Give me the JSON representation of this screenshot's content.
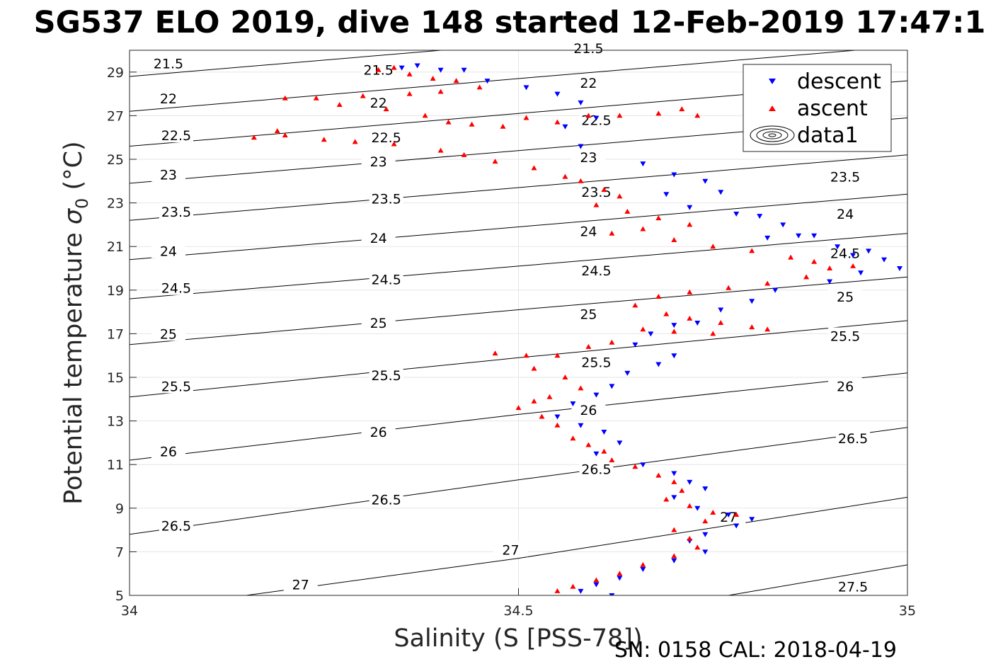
{
  "chart_data": {
    "type": "scatter",
    "title": "SG537 ELO 2019, dive 148 started 12-Feb-2019 17:47:1",
    "xlabel": "Salinity (S [PSS-78])",
    "ylabel_main": "Potential temperature ",
    "ylabel_symbol": "σ",
    "ylabel_sub": "0",
    "ylabel_unit": " (°C)",
    "footer": "SN: 0158  CAL: 2018-04-19",
    "xlim": [
      34,
      35
    ],
    "ylim": [
      5,
      30
    ],
    "x_ticks": [
      34,
      34.5,
      35
    ],
    "x_tick_labels": [
      "34",
      "34.5",
      "35"
    ],
    "y_ticks": [
      5,
      7,
      9,
      11,
      13,
      15,
      17,
      19,
      21,
      23,
      25,
      27,
      29
    ],
    "y_tick_labels": [
      "5",
      "7",
      "9",
      "11",
      "13",
      "15",
      "17",
      "19",
      "21",
      "23",
      "25",
      "27",
      "29"
    ],
    "grid": true,
    "legend_position": "top-right",
    "legend": [
      "descent",
      "ascent",
      "data1"
    ],
    "contours": {
      "levels": [
        21.5,
        22,
        22.5,
        23,
        23.5,
        24,
        24.5,
        25,
        25.5,
        26,
        26.5,
        27,
        27.5
      ],
      "labels": [
        "21.5",
        "22",
        "22.5",
        "23",
        "23.5",
        "24",
        "24.5",
        "25",
        "25.5",
        "26",
        "26.5",
        "27",
        "27.5"
      ],
      "lines": [
        {
          "level": 21.5,
          "points": [
            [
              34.0,
              28.8
            ],
            [
              34.5,
              30.3
            ],
            [
              35.0,
              31.8
            ]
          ]
        },
        {
          "level": 22,
          "points": [
            [
              34.0,
              27.2
            ],
            [
              34.5,
              28.7
            ],
            [
              35.0,
              30.2
            ]
          ]
        },
        {
          "level": 22.5,
          "points": [
            [
              34.0,
              25.6
            ],
            [
              34.5,
              27.1
            ],
            [
              35.0,
              28.6
            ]
          ]
        },
        {
          "level": 23,
          "points": [
            [
              34.0,
              23.9
            ],
            [
              34.5,
              25.4
            ],
            [
              35.0,
              26.9
            ]
          ]
        },
        {
          "level": 23.5,
          "points": [
            [
              34.0,
              22.2
            ],
            [
              34.5,
              23.7
            ],
            [
              35.0,
              25.2
            ]
          ]
        },
        {
          "level": 24,
          "points": [
            [
              34.0,
              20.4
            ],
            [
              34.5,
              21.9
            ],
            [
              35.0,
              23.4
            ]
          ]
        },
        {
          "level": 24.5,
          "points": [
            [
              34.0,
              18.6
            ],
            [
              34.5,
              20.1
            ],
            [
              35.0,
              21.6
            ]
          ]
        },
        {
          "level": 25,
          "points": [
            [
              34.0,
              16.5
            ],
            [
              34.5,
              18.1
            ],
            [
              35.0,
              19.6
            ]
          ]
        },
        {
          "level": 25.5,
          "points": [
            [
              34.0,
              14.1
            ],
            [
              34.5,
              15.9
            ],
            [
              35.0,
              17.6
            ]
          ]
        },
        {
          "level": 26,
          "points": [
            [
              34.0,
              11.2
            ],
            [
              34.5,
              13.3
            ],
            [
              35.0,
              15.2
            ]
          ]
        },
        {
          "level": 26.5,
          "points": [
            [
              34.0,
              7.8
            ],
            [
              34.5,
              10.3
            ],
            [
              35.0,
              12.7
            ]
          ]
        },
        {
          "level": 27,
          "points": [
            [
              34.15,
              5.0
            ],
            [
              34.5,
              6.7
            ],
            [
              35.0,
              9.5
            ]
          ]
        },
        {
          "level": 27.5,
          "points": [
            [
              34.77,
              5.0
            ],
            [
              35.0,
              6.4
            ]
          ]
        }
      ],
      "label_points": [
        {
          "text": "21.5",
          "x": 34.05,
          "y": 29.4
        },
        {
          "text": "21.5",
          "x": 34.32,
          "y": 29.1
        },
        {
          "text": "21.5",
          "x": 34.59,
          "y": 30.1
        },
        {
          "text": "22",
          "x": 34.05,
          "y": 27.8
        },
        {
          "text": "22",
          "x": 34.32,
          "y": 27.6
        },
        {
          "text": "22",
          "x": 34.59,
          "y": 28.5
        },
        {
          "text": "22.5",
          "x": 34.06,
          "y": 26.1
        },
        {
          "text": "22.5",
          "x": 34.33,
          "y": 26.0
        },
        {
          "text": "22.5",
          "x": 34.6,
          "y": 26.8
        },
        {
          "text": "23",
          "x": 34.05,
          "y": 24.3
        },
        {
          "text": "23",
          "x": 34.32,
          "y": 24.9
        },
        {
          "text": "23",
          "x": 34.59,
          "y": 25.1
        },
        {
          "text": "23.5",
          "x": 34.06,
          "y": 22.6
        },
        {
          "text": "23.5",
          "x": 34.33,
          "y": 23.2
        },
        {
          "text": "23.5",
          "x": 34.6,
          "y": 23.5
        },
        {
          "text": "23.5",
          "x": 34.92,
          "y": 24.2
        },
        {
          "text": "24",
          "x": 34.05,
          "y": 20.8
        },
        {
          "text": "24",
          "x": 34.32,
          "y": 21.4
        },
        {
          "text": "24",
          "x": 34.59,
          "y": 21.7
        },
        {
          "text": "24",
          "x": 34.92,
          "y": 22.5
        },
        {
          "text": "24.5",
          "x": 34.06,
          "y": 19.1
        },
        {
          "text": "24.5",
          "x": 34.33,
          "y": 19.5
        },
        {
          "text": "24.5",
          "x": 34.6,
          "y": 19.9
        },
        {
          "text": "24.5",
          "x": 34.92,
          "y": 20.7
        },
        {
          "text": "25",
          "x": 34.05,
          "y": 17.0
        },
        {
          "text": "25",
          "x": 34.32,
          "y": 17.5
        },
        {
          "text": "25",
          "x": 34.59,
          "y": 17.9
        },
        {
          "text": "25",
          "x": 34.92,
          "y": 18.7
        },
        {
          "text": "25.5",
          "x": 34.06,
          "y": 14.6
        },
        {
          "text": "25.5",
          "x": 34.33,
          "y": 15.1
        },
        {
          "text": "25.5",
          "x": 34.6,
          "y": 15.7
        },
        {
          "text": "25.5",
          "x": 34.92,
          "y": 16.9
        },
        {
          "text": "26",
          "x": 34.05,
          "y": 11.6
        },
        {
          "text": "26",
          "x": 34.32,
          "y": 12.5
        },
        {
          "text": "26",
          "x": 34.59,
          "y": 13.5
        },
        {
          "text": "26",
          "x": 34.92,
          "y": 14.6
        },
        {
          "text": "26.5",
          "x": 34.06,
          "y": 8.2
        },
        {
          "text": "26.5",
          "x": 34.33,
          "y": 9.4
        },
        {
          "text": "26.5",
          "x": 34.6,
          "y": 10.8
        },
        {
          "text": "26.5",
          "x": 34.93,
          "y": 12.2
        },
        {
          "text": "27",
          "x": 34.22,
          "y": 5.5
        },
        {
          "text": "27",
          "x": 34.49,
          "y": 7.1
        },
        {
          "text": "27",
          "x": 34.77,
          "y": 8.6
        },
        {
          "text": "27.5",
          "x": 34.93,
          "y": 5.4
        }
      ]
    },
    "series": [
      {
        "name": "descent",
        "color": "#0000ff",
        "marker": "triangle-down",
        "points": [
          [
            34.35,
            29.2
          ],
          [
            34.37,
            29.3
          ],
          [
            34.4,
            29.1
          ],
          [
            34.43,
            29.1
          ],
          [
            34.46,
            28.6
          ],
          [
            34.51,
            28.3
          ],
          [
            34.55,
            28.0
          ],
          [
            34.58,
            27.6
          ],
          [
            34.56,
            26.5
          ],
          [
            34.6,
            26.9
          ],
          [
            34.85,
            27.2
          ],
          [
            34.88,
            27.0
          ],
          [
            34.58,
            25.6
          ],
          [
            34.66,
            24.8
          ],
          [
            34.7,
            24.3
          ],
          [
            34.74,
            24.0
          ],
          [
            34.69,
            23.4
          ],
          [
            34.72,
            22.8
          ],
          [
            34.78,
            22.5
          ],
          [
            34.76,
            23.5
          ],
          [
            34.81,
            22.4
          ],
          [
            34.84,
            22.0
          ],
          [
            34.86,
            21.5
          ],
          [
            34.82,
            21.4
          ],
          [
            34.88,
            21.5
          ],
          [
            34.91,
            21.0
          ],
          [
            34.93,
            20.6
          ],
          [
            34.95,
            20.8
          ],
          [
            34.97,
            20.4
          ],
          [
            34.99,
            20.0
          ],
          [
            34.94,
            19.8
          ],
          [
            34.9,
            19.4
          ],
          [
            34.83,
            19.0
          ],
          [
            34.8,
            18.5
          ],
          [
            34.76,
            18.1
          ],
          [
            34.73,
            17.5
          ],
          [
            34.7,
            17.4
          ],
          [
            34.67,
            17.0
          ],
          [
            34.65,
            16.5
          ],
          [
            34.7,
            16.0
          ],
          [
            34.68,
            15.6
          ],
          [
            34.64,
            15.2
          ],
          [
            34.62,
            14.6
          ],
          [
            34.6,
            14.2
          ],
          [
            34.57,
            13.8
          ],
          [
            34.55,
            13.2
          ],
          [
            34.58,
            12.8
          ],
          [
            34.61,
            12.5
          ],
          [
            34.63,
            12.0
          ],
          [
            34.6,
            11.5
          ],
          [
            34.66,
            11.0
          ],
          [
            34.7,
            10.6
          ],
          [
            34.72,
            10.2
          ],
          [
            34.74,
            9.9
          ],
          [
            34.7,
            9.5
          ],
          [
            34.73,
            9.0
          ],
          [
            34.77,
            8.7
          ],
          [
            34.8,
            8.5
          ],
          [
            34.78,
            8.2
          ],
          [
            34.74,
            7.8
          ],
          [
            34.72,
            7.5
          ],
          [
            34.74,
            7.0
          ],
          [
            34.7,
            6.6
          ],
          [
            34.66,
            6.2
          ],
          [
            34.63,
            5.8
          ],
          [
            34.6,
            5.5
          ],
          [
            34.58,
            5.2
          ],
          [
            34.62,
            5.0
          ]
        ]
      },
      {
        "name": "ascent",
        "color": "#ff0000",
        "marker": "triangle-up",
        "points": [
          [
            34.32,
            29.1
          ],
          [
            34.34,
            29.2
          ],
          [
            34.36,
            28.9
          ],
          [
            34.39,
            28.7
          ],
          [
            34.42,
            28.6
          ],
          [
            34.45,
            28.3
          ],
          [
            34.4,
            28.1
          ],
          [
            34.36,
            28.0
          ],
          [
            34.3,
            27.9
          ],
          [
            34.24,
            27.8
          ],
          [
            34.2,
            27.8
          ],
          [
            34.27,
            27.5
          ],
          [
            34.33,
            27.3
          ],
          [
            34.38,
            27.0
          ],
          [
            34.41,
            26.7
          ],
          [
            34.44,
            26.6
          ],
          [
            34.48,
            26.5
          ],
          [
            34.51,
            26.9
          ],
          [
            34.55,
            26.7
          ],
          [
            34.59,
            27.0
          ],
          [
            34.63,
            27.0
          ],
          [
            34.68,
            27.1
          ],
          [
            34.71,
            27.3
          ],
          [
            34.73,
            27.0
          ],
          [
            34.29,
            25.8
          ],
          [
            34.25,
            25.9
          ],
          [
            34.2,
            26.1
          ],
          [
            34.19,
            26.3
          ],
          [
            34.16,
            26.0
          ],
          [
            34.34,
            25.7
          ],
          [
            34.4,
            25.4
          ],
          [
            34.43,
            25.2
          ],
          [
            34.47,
            24.9
          ],
          [
            34.52,
            24.6
          ],
          [
            34.56,
            24.2
          ],
          [
            34.58,
            24.0
          ],
          [
            34.61,
            23.6
          ],
          [
            34.63,
            23.3
          ],
          [
            34.6,
            22.9
          ],
          [
            34.64,
            22.6
          ],
          [
            34.68,
            22.3
          ],
          [
            34.72,
            22.0
          ],
          [
            34.66,
            21.8
          ],
          [
            34.62,
            21.6
          ],
          [
            34.7,
            21.3
          ],
          [
            34.75,
            21.0
          ],
          [
            34.8,
            20.8
          ],
          [
            34.85,
            20.5
          ],
          [
            34.88,
            20.3
          ],
          [
            34.9,
            20.0
          ],
          [
            34.93,
            20.1
          ],
          [
            34.87,
            19.6
          ],
          [
            34.82,
            19.3
          ],
          [
            34.77,
            19.1
          ],
          [
            34.72,
            18.9
          ],
          [
            34.68,
            18.7
          ],
          [
            34.65,
            18.3
          ],
          [
            34.69,
            17.9
          ],
          [
            34.72,
            17.7
          ],
          [
            34.76,
            17.5
          ],
          [
            34.8,
            17.3
          ],
          [
            34.82,
            17.2
          ],
          [
            34.75,
            17.0
          ],
          [
            34.7,
            17.1
          ],
          [
            34.66,
            17.2
          ],
          [
            34.62,
            16.6
          ],
          [
            34.59,
            16.4
          ],
          [
            34.55,
            16.0
          ],
          [
            34.51,
            16.0
          ],
          [
            34.47,
            16.1
          ],
          [
            34.52,
            15.4
          ],
          [
            34.56,
            15.0
          ],
          [
            34.58,
            14.5
          ],
          [
            34.54,
            14.1
          ],
          [
            34.52,
            13.9
          ],
          [
            34.5,
            13.6
          ],
          [
            34.53,
            13.2
          ],
          [
            34.55,
            12.8
          ],
          [
            34.57,
            12.2
          ],
          [
            34.59,
            11.9
          ],
          [
            34.61,
            11.6
          ],
          [
            34.62,
            11.2
          ],
          [
            34.65,
            10.9
          ],
          [
            34.68,
            10.5
          ],
          [
            34.7,
            10.2
          ],
          [
            34.71,
            9.8
          ],
          [
            34.69,
            9.4
          ],
          [
            34.72,
            9.1
          ],
          [
            34.75,
            8.8
          ],
          [
            34.78,
            8.7
          ],
          [
            34.74,
            8.4
          ],
          [
            34.7,
            8.0
          ],
          [
            34.72,
            7.6
          ],
          [
            34.73,
            7.2
          ],
          [
            34.7,
            6.8
          ],
          [
            34.66,
            6.4
          ],
          [
            34.63,
            6.0
          ],
          [
            34.6,
            5.7
          ],
          [
            34.57,
            5.4
          ],
          [
            34.55,
            5.2
          ]
        ]
      }
    ]
  }
}
